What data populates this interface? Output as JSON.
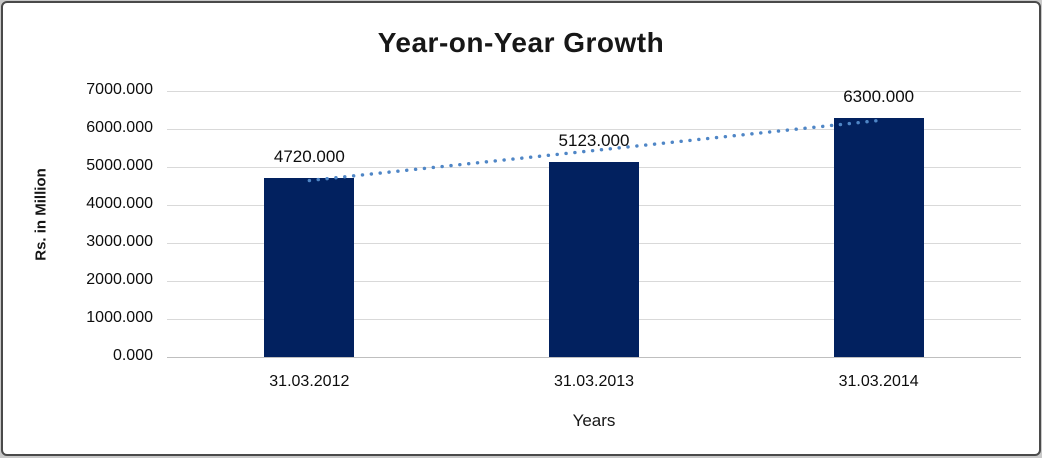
{
  "chart_data": {
    "type": "bar",
    "title": "Year-on-Year Growth",
    "xlabel": "Years",
    "ylabel": "Rs. in Million",
    "categories": [
      "31.03.2012",
      "31.03.2013",
      "31.03.2014"
    ],
    "values": [
      4720,
      5123,
      6300
    ],
    "value_labels": [
      "4720.000",
      "5123.000",
      "6300.000"
    ],
    "y_tick_values": [
      0,
      1000,
      2000,
      3000,
      4000,
      5000,
      6000,
      7000
    ],
    "y_tick_labels": [
      "0.000",
      "1000.000",
      "2000.000",
      "3000.000",
      "4000.000",
      "5000.000",
      "6000.000",
      "7000.000"
    ],
    "ylim": [
      0,
      7000
    ],
    "grid": true,
    "legend": false,
    "bar_color": "#02215f",
    "trendline": {
      "style": "dotted",
      "color": "#4f86c6",
      "fit": "linear"
    }
  }
}
